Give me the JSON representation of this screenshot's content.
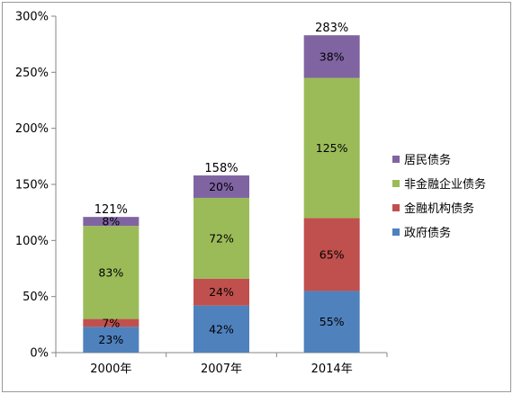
{
  "chart_data": {
    "type": "bar",
    "stacked": true,
    "categories": [
      "2000年",
      "2007年",
      "2014年"
    ],
    "series": [
      {
        "name": "政府债务",
        "values": [
          23,
          42,
          55
        ],
        "labels": [
          "23%",
          "42%",
          "55%"
        ],
        "color": "#4f81bd"
      },
      {
        "name": "金融机构债务",
        "values": [
          7,
          24,
          65
        ],
        "labels": [
          "7%",
          "24%",
          "65%"
        ],
        "color": "#c0504d"
      },
      {
        "name": "非金融企业债务",
        "values": [
          83,
          72,
          125
        ],
        "labels": [
          "83%",
          "72%",
          "125%"
        ],
        "color": "#9bbb59"
      },
      {
        "name": "居民债务",
        "values": [
          8,
          20,
          38
        ],
        "labels": [
          "8%",
          "20%",
          "38%"
        ],
        "color": "#8064a2"
      }
    ],
    "totals": [
      121,
      158,
      283
    ],
    "total_labels": [
      "121%",
      "158%",
      "283%"
    ],
    "legend_order": [
      "居民债务",
      "非金融企业债务",
      "金融机构债务",
      "政府债务"
    ],
    "y_ticks": [
      "0%",
      "50%",
      "100%",
      "150%",
      "200%",
      "250%",
      "300%"
    ],
    "ylim": [
      0,
      300
    ],
    "grid": false,
    "legend_position": "right"
  }
}
